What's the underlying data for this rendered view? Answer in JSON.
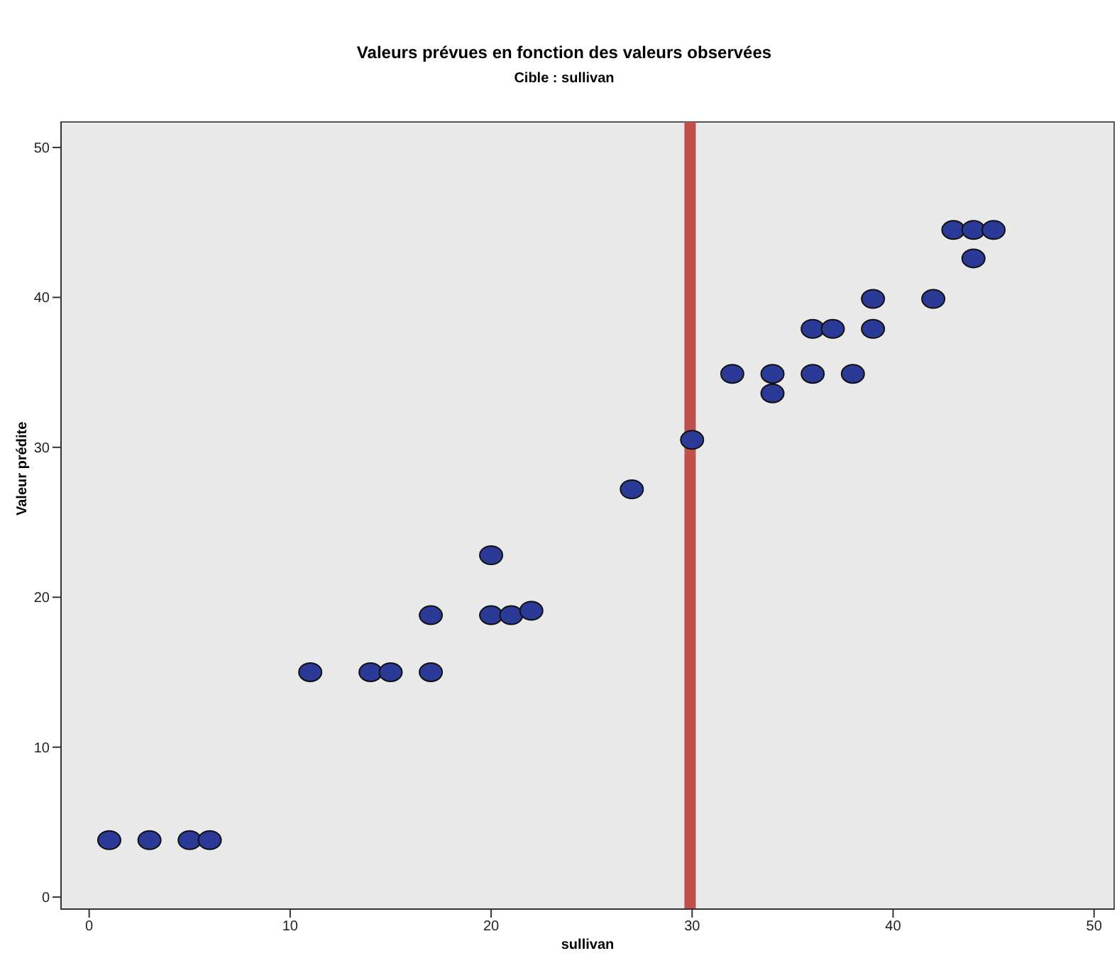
{
  "chart_data": {
    "type": "scatter",
    "title": "Valeurs prévues en fonction des valeurs observées",
    "subtitle": "Cible : sullivan",
    "xlabel": "sullivan",
    "ylabel": "Valeur prédite",
    "x": [
      1,
      3,
      5,
      6,
      11,
      14,
      15,
      17,
      17,
      20,
      21,
      22,
      20,
      27,
      30,
      32,
      34,
      34,
      36,
      38,
      36,
      37,
      39,
      39,
      42,
      43,
      44,
      45,
      44
    ],
    "series": [
      {
        "color": "#2b3a96",
        "values": [
          3.8,
          3.8,
          3.8,
          3.8,
          15,
          15,
          15,
          15,
          18.8,
          18.8,
          18.8,
          19.1,
          22.8,
          27.2,
          30.5,
          34.9,
          34.9,
          33.6,
          34.9,
          34.9,
          37.9,
          37.9,
          37.9,
          39.9,
          39.9,
          44.5,
          44.5,
          44.5,
          42.6
        ]
      }
    ],
    "xlim": [
      -1.4,
      51
    ],
    "ylim": [
      -0.8,
      51.7
    ],
    "xticks": [
      0,
      10,
      20,
      30,
      40,
      50
    ],
    "yticks": [
      0,
      10,
      20,
      30,
      40,
      50
    ],
    "ref_lines": [
      {
        "axis": "x",
        "value": 29.9,
        "color": "#c0504d"
      }
    ],
    "marker": "circle"
  }
}
